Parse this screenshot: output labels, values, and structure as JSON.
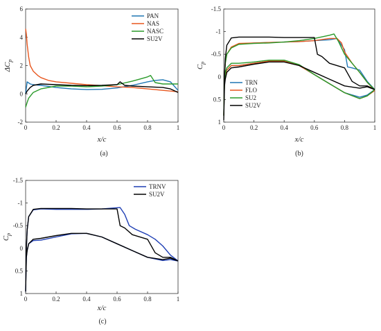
{
  "chart_data": [
    {
      "id": "a",
      "type": "line",
      "caption": "(a)",
      "xlabel": "x/c",
      "ylabel": "ΔC_p",
      "xlim": [
        0,
        1
      ],
      "ylim": [
        -2,
        6
      ],
      "y_inverted": false,
      "xticks": [
        "0",
        "0.2",
        "0.4",
        "0.6",
        "0.8",
        "1"
      ],
      "yticks": [
        "-2",
        "0",
        "2",
        "4",
        "6"
      ],
      "legend_position": "top-right",
      "grid": false,
      "series": [
        {
          "name": "PAN",
          "color": "#1f77b4",
          "x": [
            0,
            0.01,
            0.03,
            0.05,
            0.1,
            0.2,
            0.3,
            0.4,
            0.5,
            0.6,
            0.7,
            0.8,
            0.85,
            0.9,
            0.95,
            1.0
          ],
          "y": [
            0.0,
            0.85,
            0.7,
            0.65,
            0.6,
            0.45,
            0.35,
            0.3,
            0.32,
            0.42,
            0.6,
            0.85,
            0.95,
            1.0,
            0.85,
            0.25
          ]
        },
        {
          "name": "NAS",
          "color": "#e8561e",
          "x": [
            0,
            0.005,
            0.01,
            0.02,
            0.03,
            0.05,
            0.08,
            0.1,
            0.15,
            0.2,
            0.3,
            0.4,
            0.5,
            0.6,
            0.7,
            0.8,
            0.9,
            1.0
          ],
          "y": [
            4.6,
            4.2,
            3.5,
            2.6,
            2.0,
            1.6,
            1.3,
            1.15,
            0.95,
            0.85,
            0.75,
            0.65,
            0.58,
            0.5,
            0.45,
            0.35,
            0.25,
            0.15
          ]
        },
        {
          "name": "NASC",
          "color": "#2a9a2a",
          "x": [
            0,
            0.01,
            0.02,
            0.05,
            0.1,
            0.2,
            0.3,
            0.4,
            0.5,
            0.6,
            0.7,
            0.75,
            0.8,
            0.82,
            0.85,
            0.9,
            0.95,
            1.0
          ],
          "y": [
            -0.95,
            -0.6,
            -0.3,
            0.1,
            0.35,
            0.55,
            0.55,
            0.5,
            0.55,
            0.65,
            0.9,
            1.05,
            1.2,
            1.3,
            0.8,
            0.7,
            0.7,
            0.7
          ]
        },
        {
          "name": "SU2V",
          "color": "#000000",
          "x": [
            0,
            0.01,
            0.03,
            0.05,
            0.1,
            0.2,
            0.3,
            0.4,
            0.5,
            0.6,
            0.62,
            0.65,
            0.7,
            0.8,
            0.9,
            0.95,
            1.0
          ],
          "y": [
            0.0,
            0.2,
            0.45,
            0.6,
            0.7,
            0.65,
            0.6,
            0.58,
            0.6,
            0.65,
            0.85,
            0.6,
            0.55,
            0.5,
            0.45,
            0.35,
            0.1
          ]
        }
      ]
    },
    {
      "id": "b",
      "type": "line",
      "caption": "(b)",
      "xlabel": "x/c",
      "ylabel": "C_p",
      "xlim": [
        0,
        1
      ],
      "ylim": [
        -1.5,
        1
      ],
      "y_inverted": true,
      "xticks": [
        "0",
        "0.2",
        "0.4",
        "0.6",
        "0.8",
        "1"
      ],
      "yticks": [
        "-1.5",
        "-1",
        "-0.5",
        "0",
        "0.5",
        "1"
      ],
      "legend_position": "bottom-right",
      "grid": false,
      "series": [
        {
          "name": "TRN",
          "color": "#1f77b4",
          "x": [
            1.0,
            0.95,
            0.9,
            0.85,
            0.82,
            0.8,
            0.75,
            0.7,
            0.6,
            0.5,
            0.4,
            0.3,
            0.2,
            0.1,
            0.05,
            0.02,
            0.01,
            0.005,
            0.0,
            0.005,
            0.01,
            0.02,
            0.05,
            0.1,
            0.2,
            0.3,
            0.4,
            0.5,
            0.6,
            0.7,
            0.8,
            0.9,
            0.95,
            1.0
          ],
          "y": [
            0.28,
            0.1,
            -0.15,
            -0.2,
            -0.22,
            -0.6,
            -0.85,
            -0.82,
            -0.8,
            -0.78,
            -0.77,
            -0.76,
            -0.75,
            -0.73,
            -0.65,
            -0.5,
            -0.3,
            0.0,
            0.85,
            0.1,
            -0.05,
            -0.15,
            -0.25,
            -0.25,
            -0.3,
            -0.35,
            -0.35,
            -0.25,
            -0.05,
            0.15,
            0.35,
            0.45,
            0.4,
            0.28
          ]
        },
        {
          "name": "FLO",
          "color": "#e8561e",
          "x": [
            1.0,
            0.95,
            0.9,
            0.85,
            0.8,
            0.78,
            0.75,
            0.7,
            0.6,
            0.5,
            0.4,
            0.3,
            0.2,
            0.1,
            0.05,
            0.02,
            0.01,
            0.005,
            0.0,
            0.005,
            0.01,
            0.02,
            0.05,
            0.1,
            0.2,
            0.3,
            0.4,
            0.5,
            0.6,
            0.7,
            0.8,
            0.9,
            0.95,
            1.0
          ],
          "y": [
            0.3,
            0.12,
            -0.1,
            -0.3,
            -0.55,
            -0.75,
            -0.85,
            -0.85,
            -0.8,
            -0.78,
            -0.77,
            -0.76,
            -0.75,
            -0.74,
            -0.66,
            -0.5,
            -0.3,
            0.0,
            0.85,
            0.1,
            -0.05,
            -0.15,
            -0.25,
            -0.25,
            -0.3,
            -0.35,
            -0.35,
            -0.25,
            -0.05,
            0.15,
            0.35,
            0.48,
            0.42,
            0.3
          ]
        },
        {
          "name": "SU2",
          "color": "#2a9a2a",
          "x": [
            1.0,
            0.95,
            0.9,
            0.85,
            0.8,
            0.76,
            0.73,
            0.7,
            0.6,
            0.5,
            0.4,
            0.3,
            0.2,
            0.1,
            0.05,
            0.02,
            0.01,
            0.005,
            0.0,
            0.005,
            0.01,
            0.02,
            0.05,
            0.1,
            0.2,
            0.3,
            0.4,
            0.5,
            0.6,
            0.7,
            0.8,
            0.9,
            0.95,
            1.0
          ],
          "y": [
            0.28,
            0.12,
            -0.1,
            -0.3,
            -0.5,
            -0.78,
            -0.95,
            -0.92,
            -0.85,
            -0.8,
            -0.77,
            -0.75,
            -0.74,
            -0.72,
            -0.64,
            -0.5,
            -0.3,
            0.0,
            0.85,
            0.1,
            -0.08,
            -0.2,
            -0.3,
            -0.3,
            -0.33,
            -0.37,
            -0.37,
            -0.27,
            -0.05,
            0.15,
            0.35,
            0.48,
            0.42,
            0.28
          ]
        },
        {
          "name": "SU2V",
          "color": "#000000",
          "x": [
            1.0,
            0.95,
            0.9,
            0.85,
            0.8,
            0.7,
            0.65,
            0.62,
            0.6,
            0.5,
            0.4,
            0.3,
            0.2,
            0.1,
            0.05,
            0.02,
            0.01,
            0.005,
            0.0,
            0.005,
            0.01,
            0.02,
            0.05,
            0.1,
            0.2,
            0.3,
            0.4,
            0.5,
            0.6,
            0.7,
            0.8,
            0.9,
            0.95,
            1.0
          ],
          "y": [
            0.28,
            0.2,
            0.2,
            0.1,
            -0.2,
            -0.3,
            -0.45,
            -0.5,
            -0.87,
            -0.87,
            -0.87,
            -0.88,
            -0.88,
            -0.88,
            -0.86,
            -0.7,
            -0.4,
            0.0,
            0.95,
            0.2,
            0.05,
            -0.1,
            -0.2,
            -0.22,
            -0.28,
            -0.33,
            -0.33,
            -0.25,
            -0.1,
            0.05,
            0.2,
            0.25,
            0.22,
            0.28
          ]
        }
      ]
    },
    {
      "id": "c",
      "type": "line",
      "caption": "(c)",
      "xlabel": "x/c",
      "ylabel": "C_p",
      "xlim": [
        0,
        1
      ],
      "ylim": [
        -1.5,
        1
      ],
      "y_inverted": true,
      "xticks": [
        "0",
        "0.2",
        "0.4",
        "0.6",
        "0.8",
        "1"
      ],
      "yticks": [
        "-1.5",
        "-1",
        "-0.5",
        "0",
        "0.5",
        "1"
      ],
      "legend_position": "top-right",
      "grid": false,
      "series": [
        {
          "name": "TRNV",
          "color": "#1f3fb4",
          "x": [
            1.0,
            0.95,
            0.9,
            0.85,
            0.8,
            0.72,
            0.68,
            0.65,
            0.62,
            0.5,
            0.4,
            0.3,
            0.2,
            0.1,
            0.05,
            0.02,
            0.01,
            0.005,
            0.0,
            0.005,
            0.01,
            0.02,
            0.05,
            0.1,
            0.2,
            0.3,
            0.4,
            0.5,
            0.6,
            0.7,
            0.8,
            0.9,
            0.95,
            1.0
          ],
          "y": [
            0.28,
            0.15,
            -0.05,
            -0.2,
            -0.3,
            -0.42,
            -0.5,
            -0.75,
            -0.9,
            -0.87,
            -0.86,
            -0.86,
            -0.86,
            -0.87,
            -0.85,
            -0.7,
            -0.4,
            0.0,
            0.95,
            0.2,
            0.05,
            -0.1,
            -0.17,
            -0.18,
            -0.25,
            -0.32,
            -0.33,
            -0.25,
            -0.1,
            0.05,
            0.2,
            0.27,
            0.25,
            0.28
          ]
        },
        {
          "name": "SU2V",
          "color": "#000000",
          "x": [
            1.0,
            0.95,
            0.9,
            0.85,
            0.8,
            0.7,
            0.65,
            0.62,
            0.6,
            0.5,
            0.4,
            0.3,
            0.2,
            0.1,
            0.05,
            0.02,
            0.01,
            0.005,
            0.0,
            0.005,
            0.01,
            0.02,
            0.05,
            0.1,
            0.2,
            0.3,
            0.4,
            0.5,
            0.6,
            0.7,
            0.8,
            0.9,
            0.95,
            1.0
          ],
          "y": [
            0.28,
            0.2,
            0.2,
            0.1,
            -0.2,
            -0.3,
            -0.45,
            -0.5,
            -0.87,
            -0.87,
            -0.87,
            -0.88,
            -0.88,
            -0.88,
            -0.86,
            -0.7,
            -0.4,
            0.0,
            0.95,
            0.2,
            0.05,
            -0.1,
            -0.2,
            -0.22,
            -0.28,
            -0.33,
            -0.33,
            -0.25,
            -0.1,
            0.05,
            0.2,
            0.25,
            0.22,
            0.28
          ]
        }
      ]
    }
  ]
}
